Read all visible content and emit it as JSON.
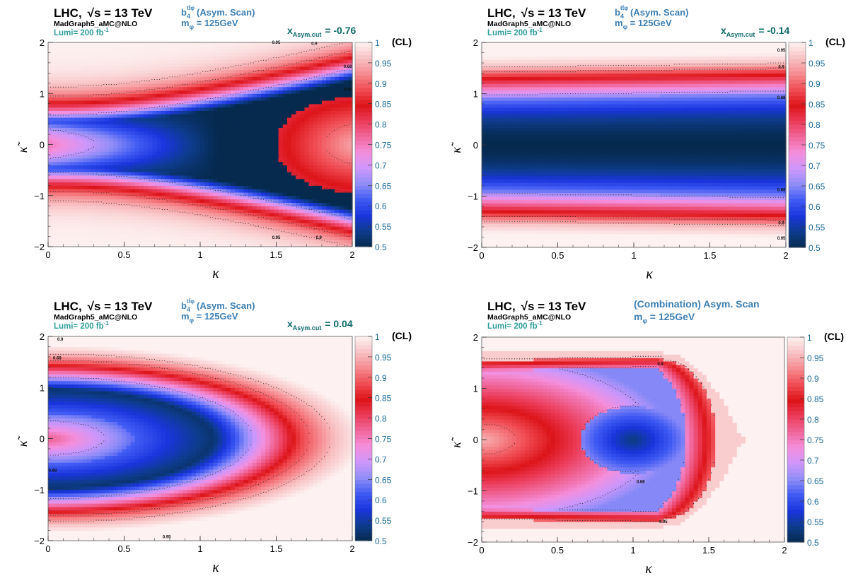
{
  "colors": {
    "scale": [
      "#062a4e",
      "#0e3c8c",
      "#1a35dd",
      "#3f5af3",
      "#8e8df7",
      "#cd97fb",
      "#f48fdc",
      "#f0689c",
      "#ec3c5a",
      "#dc1419",
      "#f04b53",
      "#f58a8f",
      "#f8c2c4",
      "#fdf1f1"
    ],
    "title": "#000000",
    "lumi": "#2f9e9a",
    "process": "#3c7fb4",
    "cutlabel": "#0f6a6a",
    "ticklabel": "#1a6a9a"
  },
  "common": {
    "lhc": "LHC,",
    "sqrt_s": "√s = 13 TeV",
    "generator": "MadGraph5_aMC@NLO",
    "lumi": "Lumi= 200 fb",
    "lumi_sup": "-1",
    "mass_pre": "m",
    "mass_sub": "φ",
    "mass_post": " = 125GeV",
    "cl_label": "(CL)",
    "b4_base": "b",
    "b4_sub": "4",
    "b4_sup": "tt̄φ",
    "asym_scan": "(Asym. Scan)",
    "xcut_base": "x",
    "xcut_sub": "Asym.cut"
  },
  "chart_data": [
    {
      "type": "heatmap",
      "panel": "top-left",
      "process_label": "(Asym. Scan)",
      "asym_cut": "= -0.76",
      "xlabel": "κ",
      "ylabel": "κ̃",
      "xlim": [
        0,
        2
      ],
      "ylim": [
        -2,
        2
      ],
      "x_ticks": [
        "0",
        "0.5",
        "1",
        "1.5",
        "2"
      ],
      "y_ticks": [
        "−2",
        "−1",
        "0",
        "1",
        "2"
      ],
      "z_range": [
        0.5,
        1
      ],
      "z_ticks": [
        "0.5",
        "0.55",
        "0.6",
        "0.65",
        "0.7",
        "0.75",
        "0.8",
        "0.85",
        "0.9",
        "0.95",
        "1"
      ],
      "model": "hyperbola",
      "params": {
        "a": 0.85,
        "b": -0.9,
        "w": 0.75
      },
      "contours": [
        0.68,
        0.9,
        0.95
      ],
      "contour_labels": [
        {
          "text": "0.95",
          "x": 1.5,
          "y": -1.85
        },
        {
          "text": "0.9",
          "x": 1.78,
          "y": -1.85
        },
        {
          "text": "0.95",
          "x": 1.5,
          "y": 1.97
        },
        {
          "text": "0.9",
          "x": 1.75,
          "y": 1.95
        },
        {
          "text": "0.68",
          "x": 1.97,
          "y": 1.5
        },
        {
          "text": "0.68",
          "x": 1.97,
          "y": 1.05
        }
      ]
    },
    {
      "type": "heatmap",
      "panel": "top-right",
      "process_label": "(Asym. Scan)",
      "asym_cut": "= -0.14",
      "xlabel": "κ",
      "ylabel": "κ̃",
      "xlim": [
        0,
        2
      ],
      "ylim": [
        -2,
        2
      ],
      "x_ticks": [
        "0",
        "0.5",
        "1",
        "1.5",
        "2"
      ],
      "y_ticks": [
        "−2",
        "−1",
        "0",
        "1",
        "2"
      ],
      "z_range": [
        0.5,
        1
      ],
      "z_ticks": [
        "0.5",
        "0.55",
        "0.6",
        "0.65",
        "0.7",
        "0.75",
        "0.8",
        "0.85",
        "0.9",
        "0.95",
        "1"
      ],
      "model": "band",
      "params": {
        "a": 0.04,
        "w": 0.85
      },
      "contours": [
        0.68,
        0.9,
        0.95
      ],
      "contour_labels": [
        {
          "text": "0.95",
          "x": 1.97,
          "y": 1.82
        },
        {
          "text": "0.9",
          "x": 1.97,
          "y": 1.5
        },
        {
          "text": "0.68",
          "x": 1.97,
          "y": 0.9
        },
        {
          "text": "0.68",
          "x": 1.97,
          "y": -0.9
        },
        {
          "text": "0.9",
          "x": 1.97,
          "y": -1.55
        },
        {
          "text": "0.95",
          "x": 1.97,
          "y": -1.85
        }
      ]
    },
    {
      "type": "heatmap",
      "panel": "bottom-left",
      "process_label": "(Asym. Scan)",
      "asym_cut": "= 0.04",
      "xlabel": "κ",
      "ylabel": "κ̃",
      "xlim": [
        0,
        2
      ],
      "ylim": [
        -2,
        2
      ],
      "x_ticks": [
        "0",
        "0.5",
        "1",
        "1.5",
        "2"
      ],
      "y_ticks": [
        "−2",
        "−1",
        "0",
        "1",
        "2"
      ],
      "z_range": [
        0.5,
        1
      ],
      "z_ticks": [
        "0.5",
        "0.55",
        "0.6",
        "0.65",
        "0.7",
        "0.75",
        "0.8",
        "0.85",
        "0.9",
        "0.95",
        "1"
      ],
      "model": "ellipse",
      "params": {
        "x0": 0.0,
        "ax": 1.75,
        "ay": 1.55,
        "r0": 0.5,
        "w": 0.45
      },
      "contours": [
        0.68,
        0.9,
        0.95
      ],
      "contour_labels": [
        {
          "text": "0.9",
          "x": 0.08,
          "y": 1.92
        },
        {
          "text": "0.68",
          "x": 0.06,
          "y": 1.55
        },
        {
          "text": "0.68",
          "x": 0.03,
          "y": -0.65
        },
        {
          "text": "0.95",
          "x": 0.78,
          "y": -1.95
        }
      ]
    },
    {
      "type": "heatmap",
      "panel": "bottom-right",
      "process_label": "(Combination) Asym. Scan",
      "asym_cut": "",
      "xlabel": "κ",
      "ylabel": "κ̃",
      "xlim": [
        0,
        2
      ],
      "ylim": [
        -2,
        2
      ],
      "x_ticks": [
        "0",
        "0.5",
        "1",
        "1.5",
        "2"
      ],
      "y_ticks": [
        "−2",
        "−1",
        "0",
        "1",
        "2"
      ],
      "z_range": [
        0.5,
        1
      ],
      "z_ticks": [
        "0.5",
        "0.55",
        "0.6",
        "0.65",
        "0.7",
        "0.75",
        "0.8",
        "0.85",
        "0.9",
        "0.95",
        "1"
      ],
      "model": "combination",
      "params": {
        "x0": 1.0,
        "w": 0.3
      },
      "contours": [
        0.68,
        0.9,
        0.95
      ],
      "contour_labels": [
        {
          "text": "0.9",
          "x": 1.18,
          "y": 1.45
        },
        {
          "text": "0.68",
          "x": 1.05,
          "y": -0.85
        },
        {
          "text": "0.95",
          "x": 1.2,
          "y": -1.63
        }
      ]
    }
  ]
}
